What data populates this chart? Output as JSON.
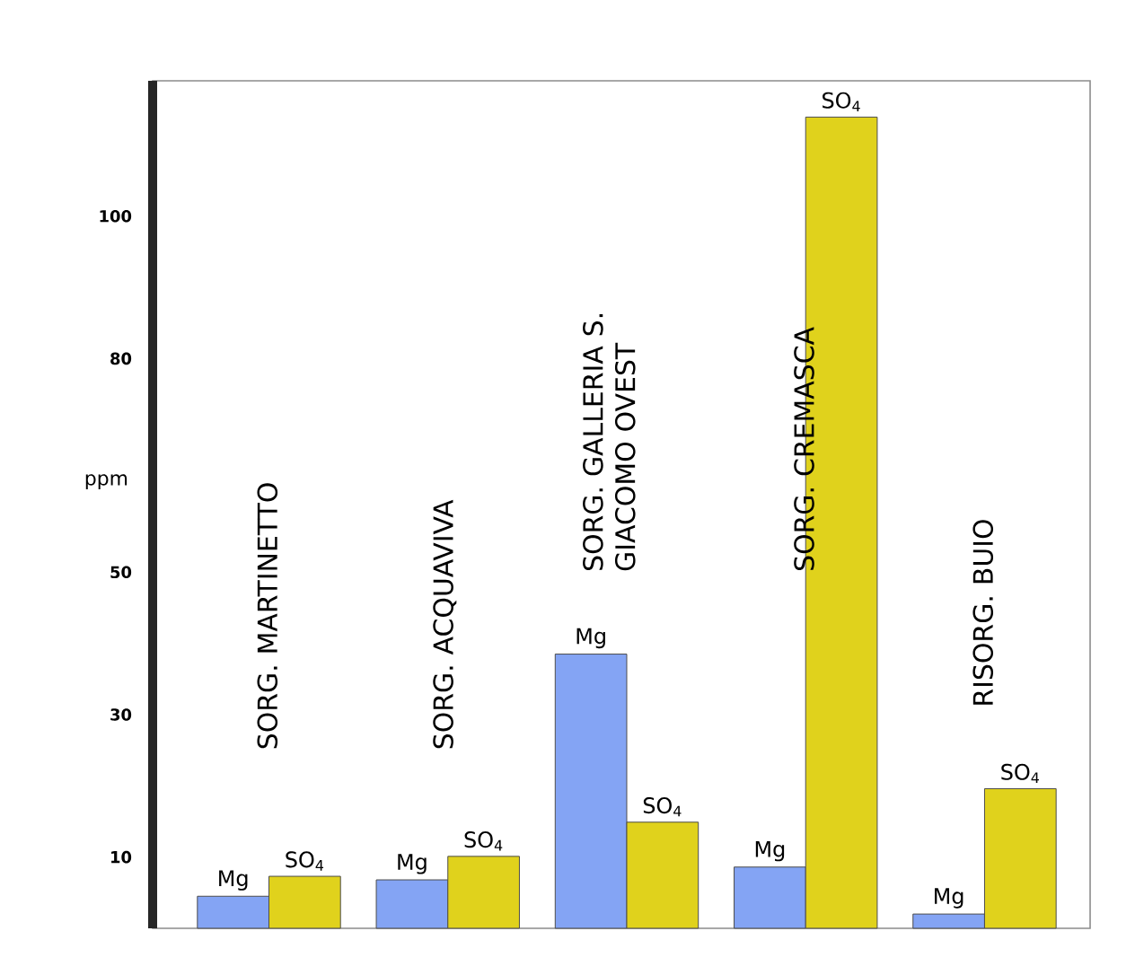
{
  "chart_data": {
    "type": "bar",
    "ylabel": "ppm",
    "categories": [
      "SORG. MARTINETTO",
      "SORG. ACQUAVIVA",
      "SORG. GALLERIA S. GIACOMO OVEST",
      "SORG. CREMASCA",
      "RISORG. BUIO"
    ],
    "series": [
      {
        "name": "Mg",
        "color": "#84a4f4",
        "values": [
          4.5,
          6.8,
          38.5,
          8.6,
          2.0
        ]
      },
      {
        "name": "SO$_{4}$",
        "color": "#e0d21c",
        "values": [
          7.3,
          10.1,
          14.9,
          113.9,
          19.6
        ]
      }
    ],
    "ylim": [
      0,
      119
    ],
    "yticks": [
      10,
      30,
      50,
      80,
      100
    ]
  }
}
